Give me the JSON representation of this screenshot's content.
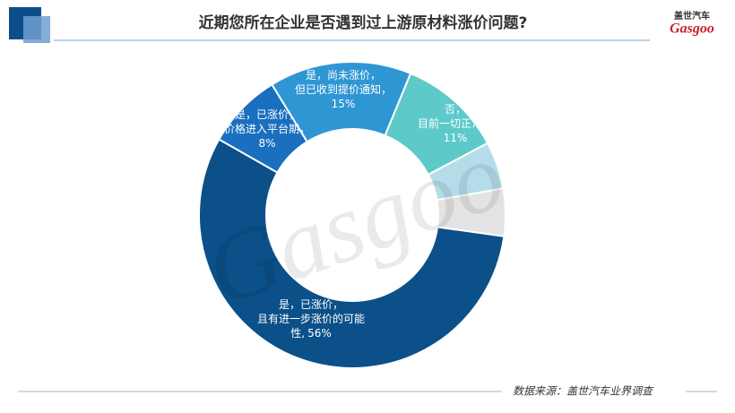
{
  "header": {
    "title": "近期您所在企业是否遇到过上游原材料涨价问题?"
  },
  "logo": {
    "cn": "盖世汽车",
    "brand": "Gasgoo"
  },
  "chart_data": {
    "type": "donut",
    "categories": [
      [
        "是，已涨价，",
        "且有进一步涨价的可能",
        "性,"
      ],
      [
        "是，已涨价，",
        "价格进入平台期，"
      ],
      [
        "是，尚未涨价，",
        "但已收到提价通知，"
      ],
      [
        "否，",
        "目前一切正常，"
      ],
      null,
      null
    ],
    "values": [
      56,
      8,
      15,
      11,
      5,
      5
    ],
    "value_labels": [
      "56%",
      "8%",
      "15%",
      "11%",
      null,
      null
    ],
    "colors": [
      "#0b5089",
      "#1a6fbf",
      "#2f96d4",
      "#5ec9c9",
      "#b4dde9",
      "#e3e3e3"
    ]
  },
  "footer": {
    "source": "数据来源：盖世汽车业界调查"
  }
}
